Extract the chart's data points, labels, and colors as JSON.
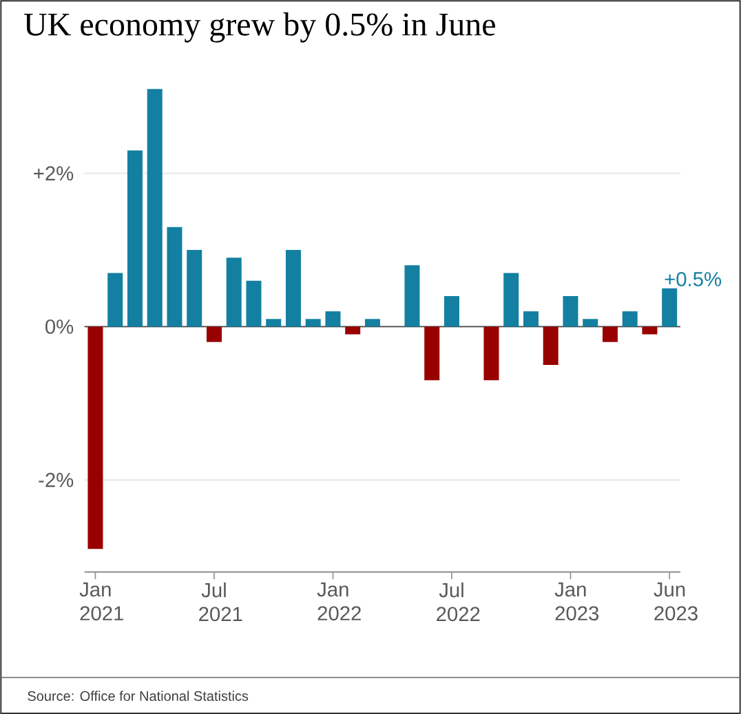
{
  "chart_data": {
    "type": "bar",
    "title": "UK economy grew by 0.5% in June",
    "categories": [
      "Jan 2021",
      null,
      null,
      null,
      null,
      null,
      "Jul 2021",
      null,
      null,
      null,
      null,
      null,
      "Jan 2022",
      null,
      null,
      null,
      null,
      null,
      "Jul 2022",
      null,
      null,
      null,
      null,
      null,
      "Jan 2023",
      null,
      null,
      null,
      null,
      "Jun 2023"
    ],
    "values": [
      -2.9,
      0.7,
      2.3,
      3.1,
      1.3,
      1.0,
      -0.2,
      0.9,
      0.6,
      0.1,
      1.0,
      0.1,
      0.2,
      -0.1,
      0.1,
      0.0,
      0.8,
      -0.7,
      0.4,
      0.0,
      -0.7,
      0.7,
      0.2,
      -0.5,
      0.4,
      0.1,
      -0.2,
      0.2,
      -0.1,
      0.5
    ],
    "colors": [
      "#990000",
      "#1380a1",
      "#1380a1",
      "#1380a1",
      "#1380a1",
      "#1380a1",
      "#990000",
      "#1380a1",
      "#1380a1",
      "#1380a1",
      "#1380a1",
      "#1380a1",
      "#1380a1",
      "#990000",
      "#1380a1",
      "#1380a1",
      "#1380a1",
      "#990000",
      "#1380a1",
      "#1380a1",
      "#990000",
      "#1380a1",
      "#1380a1",
      "#990000",
      "#1380a1",
      "#1380a1",
      "#990000",
      "#1380a1",
      "#990000",
      "#1380a1"
    ],
    "value_labels": [
      null,
      null,
      null,
      null,
      null,
      null,
      null,
      null,
      null,
      null,
      null,
      null,
      null,
      null,
      null,
      null,
      null,
      null,
      null,
      null,
      null,
      null,
      null,
      null,
      null,
      null,
      null,
      null,
      null,
      "+0.5%"
    ],
    "ylim": [
      -3.2,
      3.1
    ],
    "yticks": [
      {
        "value": -2,
        "label": "-2%"
      },
      {
        "value": 0,
        "label": "0%"
      },
      {
        "value": 2,
        "label": "+2%"
      }
    ],
    "grid": "y",
    "annotations": [
      "Source: Office for National Statistics"
    ]
  }
}
